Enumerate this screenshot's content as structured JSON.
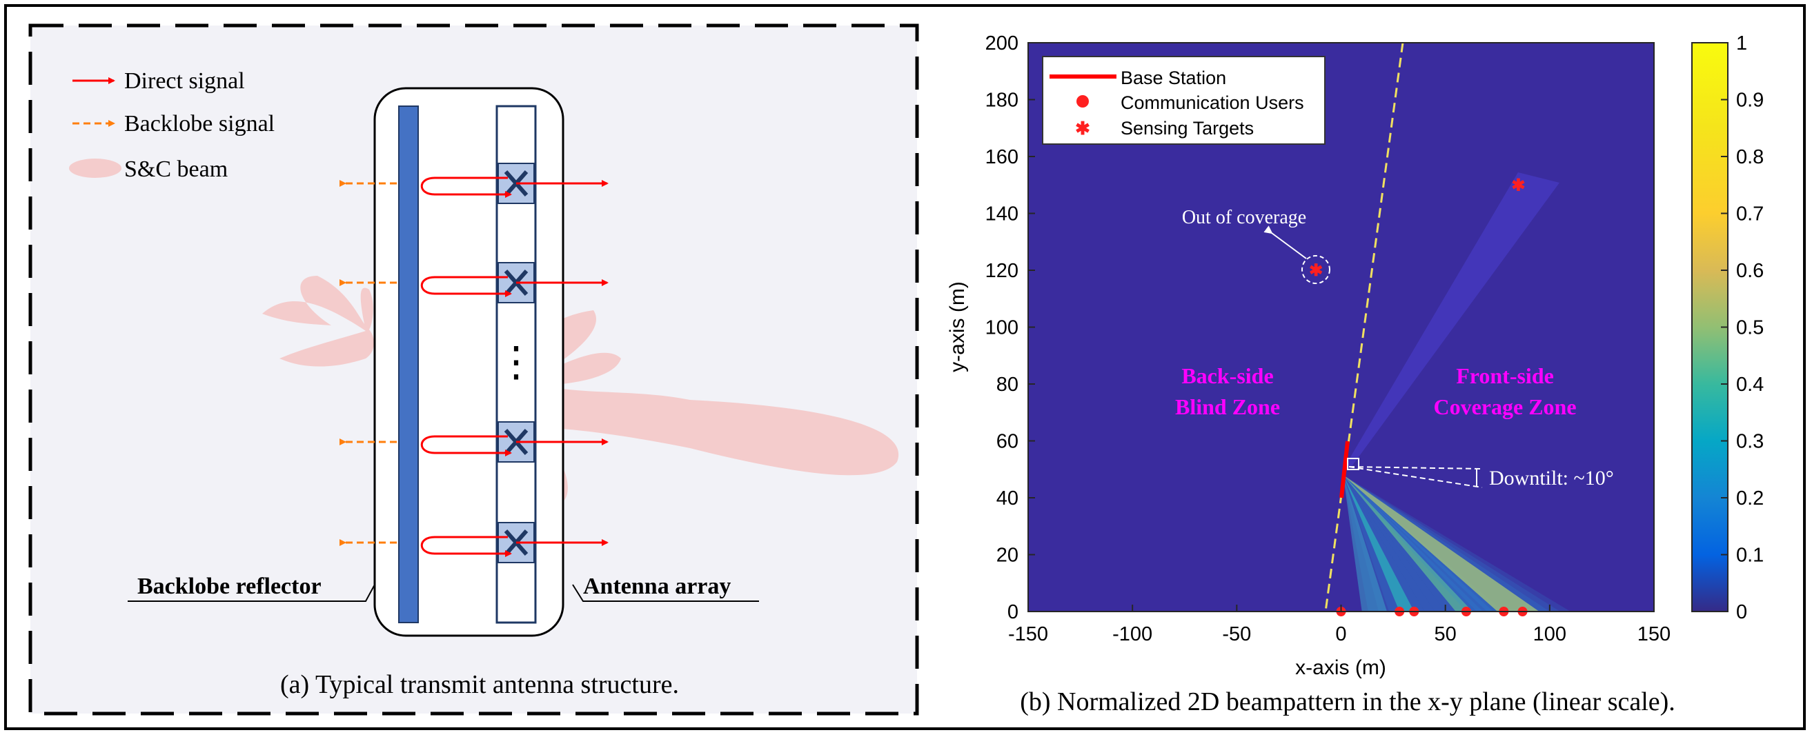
{
  "panel_a": {
    "legend": {
      "direct": "Direct signal",
      "backlobe": "Backlobe signal",
      "beam": "S&C beam"
    },
    "labels": {
      "reflector": "Backlobe reflector",
      "array": "Antenna array",
      "dots": "⋮"
    },
    "caption": "(a) Typical transmit antenna structure.",
    "colors": {
      "direct": "#ff0000",
      "backlobe": "#ff7f0e",
      "beam": "#f4cccc",
      "reflector": "#4472c4",
      "element_fill": "#b4c7e7",
      "element_x": "#1f3864",
      "background": "#f2f2f7"
    }
  },
  "panel_b": {
    "caption": "(b) Normalized 2D beampattern in the x-y plane (linear scale).",
    "annotations": {
      "out_of_coverage": "Out of coverage",
      "back_zone_1": "Back-side",
      "back_zone_2": "Blind Zone",
      "front_zone_1": "Front-side",
      "front_zone_2": "Coverage Zone",
      "downtilt": "Downtilt: ~10°"
    },
    "legend": {
      "base_station": "Base Station",
      "users": "Communication Users",
      "targets": "Sensing Targets"
    },
    "colors": {
      "background": "#3a2c9e",
      "zone_text": "#ff00ff",
      "marker": "#ff2020"
    }
  },
  "chart_data": {
    "type": "heatmap",
    "title": "",
    "xlabel": "x-axis (m)",
    "ylabel": "y-axis (m)",
    "xlim": [
      -150,
      150
    ],
    "ylim": [
      0,
      200
    ],
    "xticks": [
      -150,
      -100,
      -50,
      0,
      50,
      100,
      150
    ],
    "yticks": [
      0,
      20,
      40,
      60,
      80,
      100,
      120,
      140,
      160,
      180,
      200
    ],
    "colorbar": {
      "range": [
        0,
        1
      ],
      "ticks": [
        0,
        0.1,
        0.2,
        0.3,
        0.4,
        0.5,
        0.6,
        0.7,
        0.8,
        0.9,
        1
      ],
      "colormap": "parula"
    },
    "legend_position": "top-left",
    "base_station": {
      "x": [
        0,
        2
      ],
      "y": [
        40,
        60
      ]
    },
    "communication_users": {
      "x": [
        0,
        28,
        35,
        60,
        78,
        87
      ],
      "y": [
        0,
        0,
        0,
        0,
        0,
        0
      ]
    },
    "sensing_targets": {
      "x": [
        -12,
        85
      ],
      "y": [
        120,
        150
      ]
    },
    "downtilt_deg": 10
  }
}
